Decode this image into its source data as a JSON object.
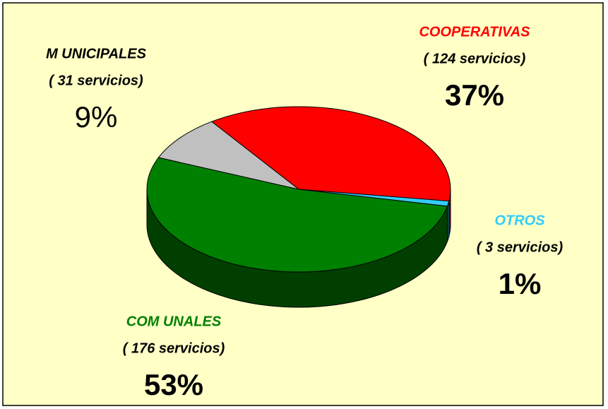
{
  "chart_data": {
    "type": "pie",
    "categories": [
      "COOPERATIVAS",
      "OTROS",
      "COM UNALES",
      "M UNICIPALES"
    ],
    "values": [
      37,
      1,
      53,
      9
    ],
    "value_labels": [
      "37%",
      "1%",
      "53%",
      "9%"
    ],
    "annotations": [
      "( 124 servicios)",
      "( 3 servicios)",
      "( 176 servicios)",
      "( 31 servicios)"
    ],
    "colors": [
      "#ff0000",
      "#33ccff",
      "#008000",
      "#c0c0c0"
    ],
    "side_colors": [
      "#800000",
      "#1a6680",
      "#003f00",
      "#606060"
    ],
    "label_colors": [
      "#ff0000",
      "#33ccff",
      "#008000",
      "#000000"
    ]
  }
}
